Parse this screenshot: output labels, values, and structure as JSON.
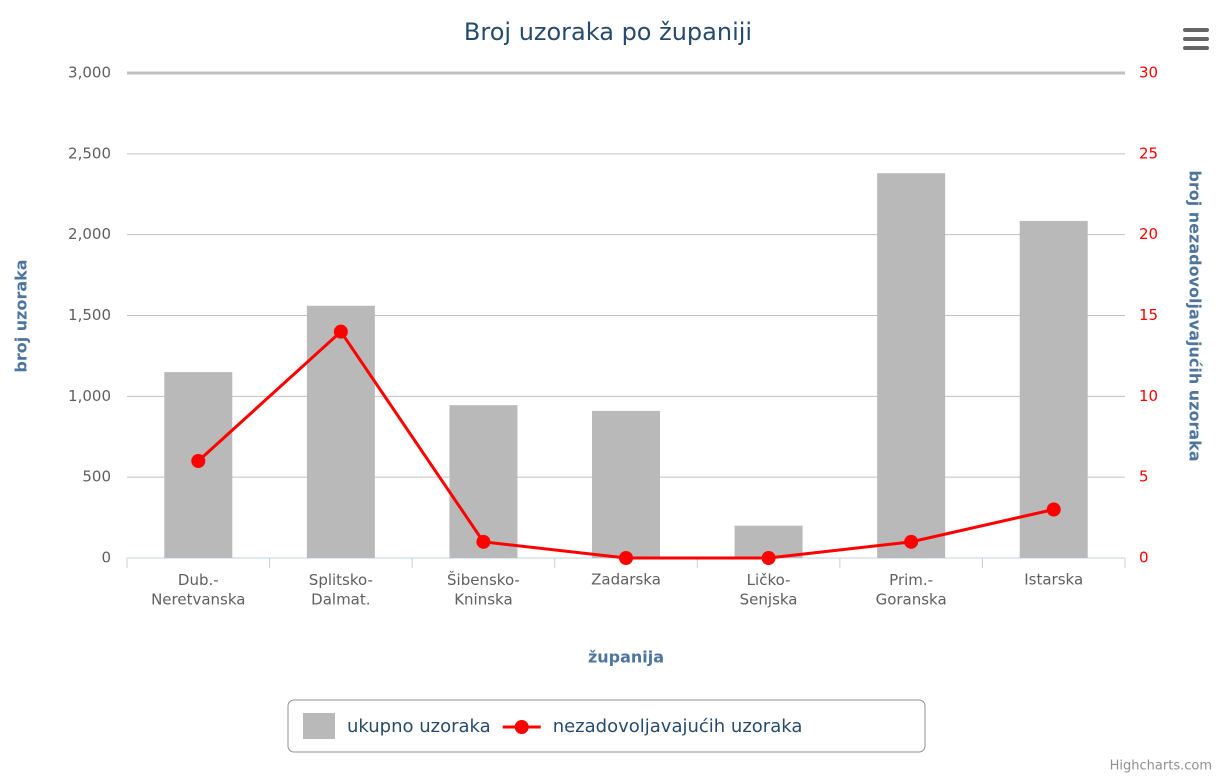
{
  "chart_data": {
    "type": "bar-line",
    "title": "Broj uzoraka po županiji",
    "x_label": "županija",
    "y_label": "broj uzoraka",
    "y2_label": "broj nezadovoljavajućih uzoraka",
    "credits": "Highcharts.com",
    "categories": [
      "Dub.-\nNeretvanska",
      "Splitsko-\nDalmat.",
      "Šibensko-\nKninska",
      "Zadarska",
      "Ličko-\nSenjska",
      "Prim.-\nGoranska",
      "Istarska"
    ],
    "series": [
      {
        "name": "ukupno uzoraka",
        "type": "bar",
        "color": "#b9b9b9",
        "values": [
          1150,
          1560,
          945,
          910,
          200,
          2380,
          2085
        ]
      },
      {
        "name": "nezadovoljavajućih uzoraka",
        "type": "line",
        "axis": "y2",
        "color": "#ff0000",
        "values": [
          6,
          14,
          1,
          0,
          0,
          1,
          3
        ]
      }
    ],
    "ylim": [
      0,
      3000
    ],
    "yticks": [
      0,
      500,
      {
        "value": 1000,
        "label": "1,000"
      },
      {
        "value": 1500,
        "label": "1,500"
      },
      {
        "value": 2000,
        "label": "2,000"
      },
      {
        "value": 2500,
        "label": "2,500"
      },
      {
        "value": 3000,
        "label": "3,000"
      }
    ],
    "y2lim": [
      0,
      30
    ],
    "y2ticks": [
      0,
      5,
      10,
      15,
      20,
      25,
      30
    ],
    "grid": true
  }
}
